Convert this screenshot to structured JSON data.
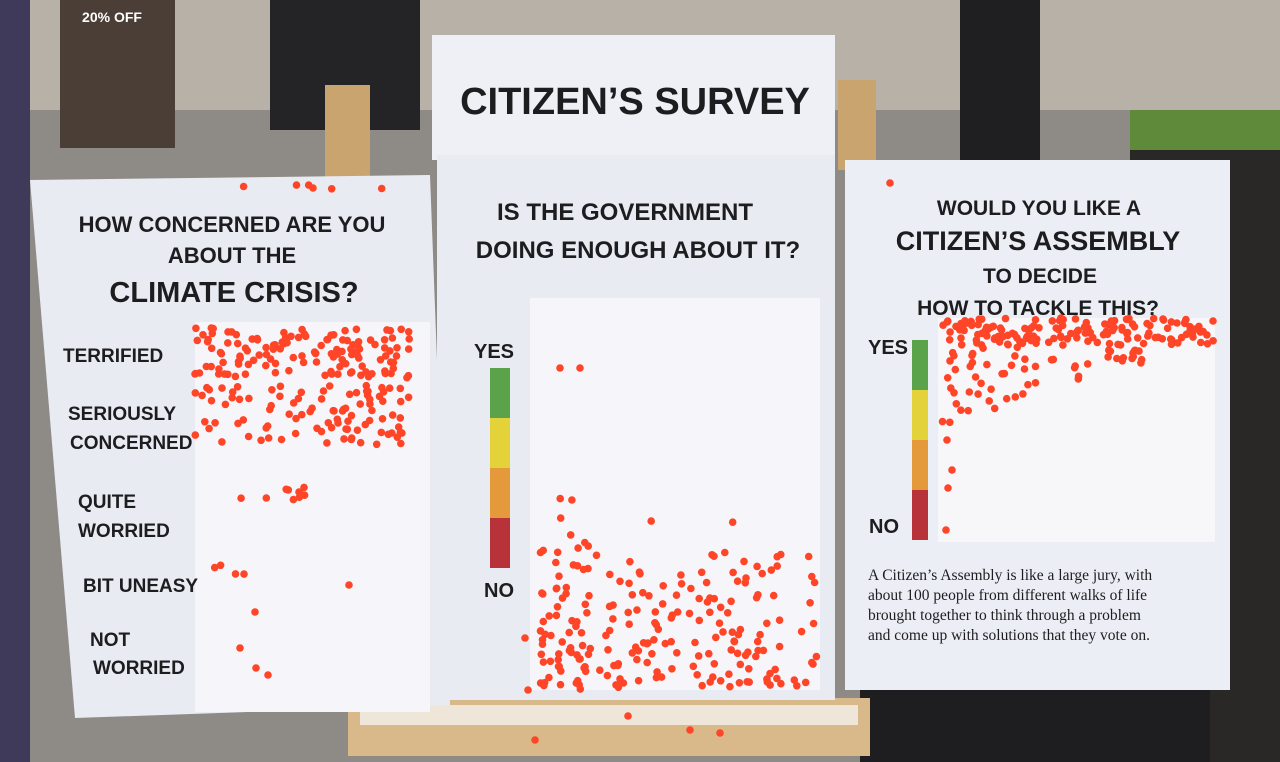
{
  "background": {
    "sign": "20% OFF"
  },
  "header": {
    "title": "CITIZEN’S SURVEY"
  },
  "panels": [
    {
      "question": [
        "HOW CONCERNED ARE YOU",
        "ABOUT THE",
        "CLIMATE CRISIS?"
      ],
      "options": [
        [
          "TERRIFIED"
        ],
        [
          "SERIOUSLY",
          "CONCERNED"
        ],
        [
          "QUITE",
          "WORRIED"
        ],
        [
          "BIT UNEASY"
        ],
        [
          "NOT",
          "WORRIED"
        ]
      ]
    },
    {
      "question": [
        "IS THE GOVERNMENT",
        "DOING ENOUGH ABOUT IT?"
      ],
      "scale": [
        "YES",
        "NO"
      ]
    },
    {
      "question": [
        "WOULD YOU LIKE A",
        "CITIZEN’S ASSEMBLY",
        "TO DECIDE",
        "HOW TO TACKLE THIS?"
      ],
      "scale": [
        "YES",
        "NO"
      ],
      "note": [
        "A Citizen’s Assembly is like a large jury, with",
        "about 100 people from different walks of life",
        "brought together to think through a problem",
        "and come up with solutions that they vote on."
      ]
    }
  ]
}
